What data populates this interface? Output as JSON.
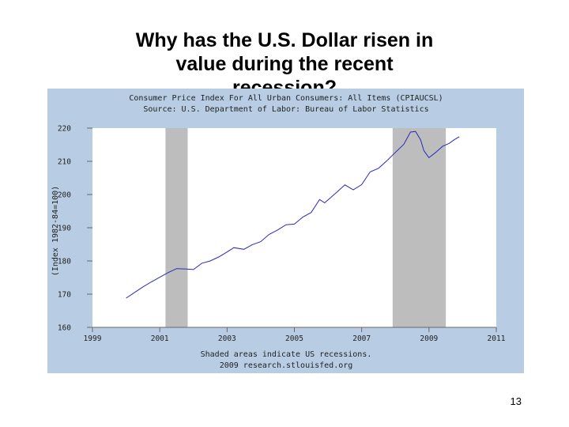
{
  "slide": {
    "title_lines": [
      "Why has the U.S. Dollar risen in",
      "value during the recent",
      "recession?"
    ],
    "page_number": "13"
  },
  "chart_data": {
    "type": "line",
    "title": "Consumer Price Index For All Urban Consumers: All Items (CPIAUCSL)",
    "subtitle": "Source: U.S. Department of Labor: Bureau of Labor Statistics",
    "xlabel": "",
    "ylabel": "(Index 1982-84=100)",
    "xlim": [
      1999,
      2011
    ],
    "ylim": [
      160,
      220
    ],
    "x_ticks": [
      "1999",
      "2001",
      "2003",
      "2005",
      "2007",
      "2009",
      "2011"
    ],
    "y_ticks": [
      "160",
      "170",
      "180",
      "190",
      "200",
      "210",
      "220"
    ],
    "grid": false,
    "footnote": "Shaded areas indicate US recessions.",
    "credit": "2009 research.stlouisfed.org",
    "recessions": [
      {
        "start": 2001.17,
        "end": 2001.83
      },
      {
        "start": 2007.92,
        "end": 2009.5
      }
    ],
    "colors": {
      "line": "#2a2ab8",
      "recession": "#bdbdbd",
      "frame": "#b8cde4",
      "plot": "#ffffff",
      "axis": "#666666"
    },
    "series": [
      {
        "values": [
          [
            2000.0,
            168.8
          ],
          [
            2000.25,
            170.5
          ],
          [
            2000.5,
            172.2
          ],
          [
            2000.75,
            173.7
          ],
          [
            2001.0,
            175.1
          ],
          [
            2001.25,
            176.5
          ],
          [
            2001.5,
            177.7
          ],
          [
            2001.75,
            177.6
          ],
          [
            2002.0,
            177.4
          ],
          [
            2002.25,
            179.3
          ],
          [
            2002.5,
            180.0
          ],
          [
            2002.75,
            181.2
          ],
          [
            2003.0,
            182.7
          ],
          [
            2003.2,
            184.0
          ],
          [
            2003.5,
            183.5
          ],
          [
            2003.75,
            184.9
          ],
          [
            2004.0,
            185.8
          ],
          [
            2004.25,
            188.0
          ],
          [
            2004.5,
            189.3
          ],
          [
            2004.75,
            190.9
          ],
          [
            2005.0,
            191.1
          ],
          [
            2005.25,
            193.2
          ],
          [
            2005.5,
            194.6
          ],
          [
            2005.75,
            198.5
          ],
          [
            2005.9,
            197.5
          ],
          [
            2006.0,
            198.4
          ],
          [
            2006.25,
            200.6
          ],
          [
            2006.5,
            202.9
          ],
          [
            2006.75,
            201.4
          ],
          [
            2007.0,
            203.0
          ],
          [
            2007.25,
            206.8
          ],
          [
            2007.5,
            207.9
          ],
          [
            2007.75,
            210.2
          ],
          [
            2008.0,
            212.7
          ],
          [
            2008.25,
            215.1
          ],
          [
            2008.45,
            218.8
          ],
          [
            2008.6,
            219.0
          ],
          [
            2008.75,
            216.5
          ],
          [
            2008.85,
            213.2
          ],
          [
            2009.0,
            211.1
          ],
          [
            2009.2,
            212.7
          ],
          [
            2009.4,
            214.5
          ],
          [
            2009.6,
            215.4
          ],
          [
            2009.75,
            216.5
          ],
          [
            2009.9,
            217.4
          ]
        ]
      }
    ]
  }
}
